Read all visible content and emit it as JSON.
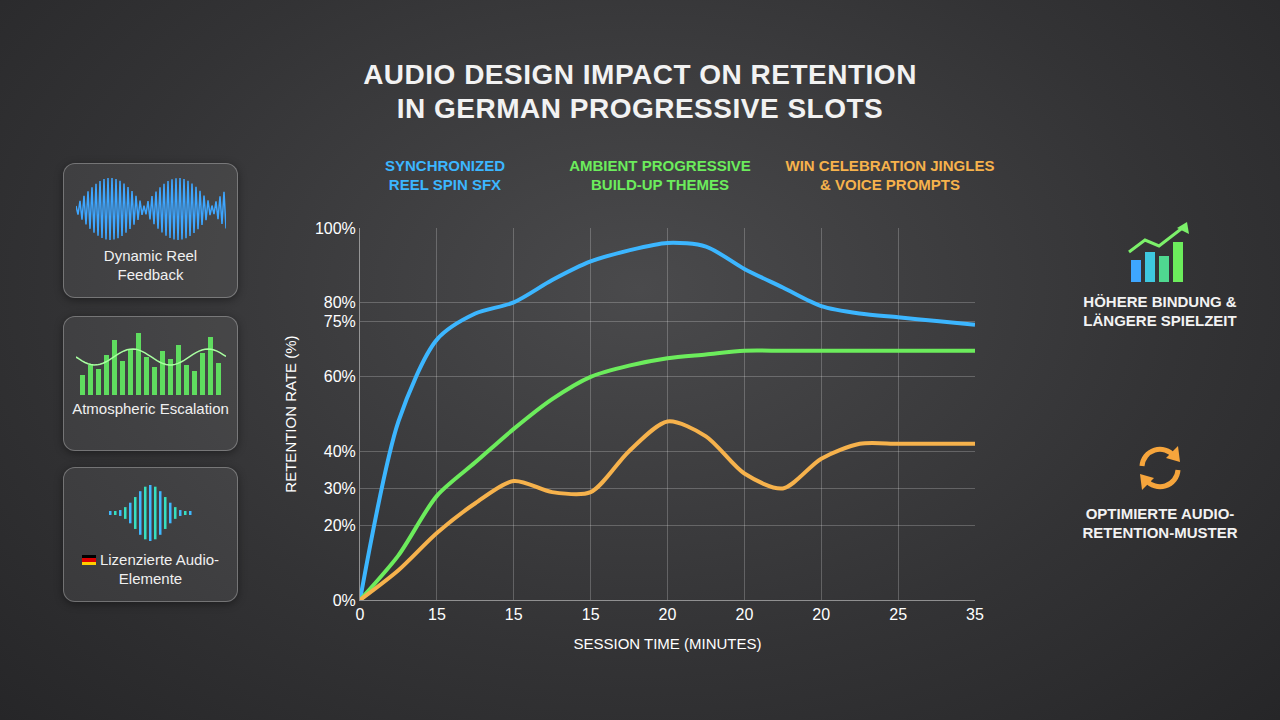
{
  "chart_data": {
    "type": "line",
    "title": "AUDIO DESIGN IMPACT ON RETENTION IN GERMAN PROGRESSIVE SLOTS",
    "x_label": "SESSION TIME (MINUTES)",
    "y_label": "RETENTION RATE (%)",
    "categories": [
      "0",
      null,
      "15",
      null,
      "15",
      null,
      "15",
      null,
      "20",
      null,
      "20",
      null,
      "20",
      null,
      "25",
      null,
      "35"
    ],
    "series": [
      {
        "name": "SYNCHRONIZED REEL SPIN SFX",
        "color": "#3cb6ff",
        "values": [
          0,
          48,
          70,
          77,
          80,
          86,
          91,
          94,
          96,
          95,
          89,
          84,
          79,
          77,
          76,
          75,
          74
        ]
      },
      {
        "name": "AMBIENT PROGRESSIVE BUILD-UP THEMES",
        "color": "#6cec5c",
        "values": [
          0,
          12,
          28,
          37,
          46,
          54,
          60,
          63,
          65,
          66,
          67,
          67,
          67,
          67,
          67,
          67,
          67
        ]
      },
      {
        "name": "WIN CELEBRATION JINGLES & VOICE PROMPTS",
        "color": "#f6b24c",
        "values": [
          0,
          8,
          18,
          26,
          32,
          29,
          29,
          40,
          48,
          44,
          34,
          30,
          38,
          42,
          42,
          42,
          42
        ]
      }
    ],
    "ylim": [
      0,
      100
    ],
    "yticks": [
      {
        "value": 0,
        "label": "0%"
      },
      {
        "value": 20,
        "label": "20%"
      },
      {
        "value": 30,
        "label": "30%"
      },
      {
        "value": 40,
        "label": "40%"
      },
      {
        "value": 60,
        "label": "60%"
      },
      {
        "value": 75,
        "label": "75%"
      },
      {
        "value": 80,
        "label": "80%"
      },
      {
        "value": 100,
        "label": "100%"
      }
    ],
    "grid": true,
    "legend": "top",
    "line_style": "smooth"
  },
  "panels": [
    {
      "label": "Dynamic Reel Feedback"
    },
    {
      "label": "Atmospheric Escalation"
    },
    {
      "label": "Lizenzierte Audio-Elemente"
    }
  ],
  "callouts": [
    {
      "text": "HÖHERE BINDUNG & LÄNGERE SPIELZEIT"
    },
    {
      "text": "OPTIMIERTE AUDIO-RETENTION-MUSTER"
    }
  ]
}
